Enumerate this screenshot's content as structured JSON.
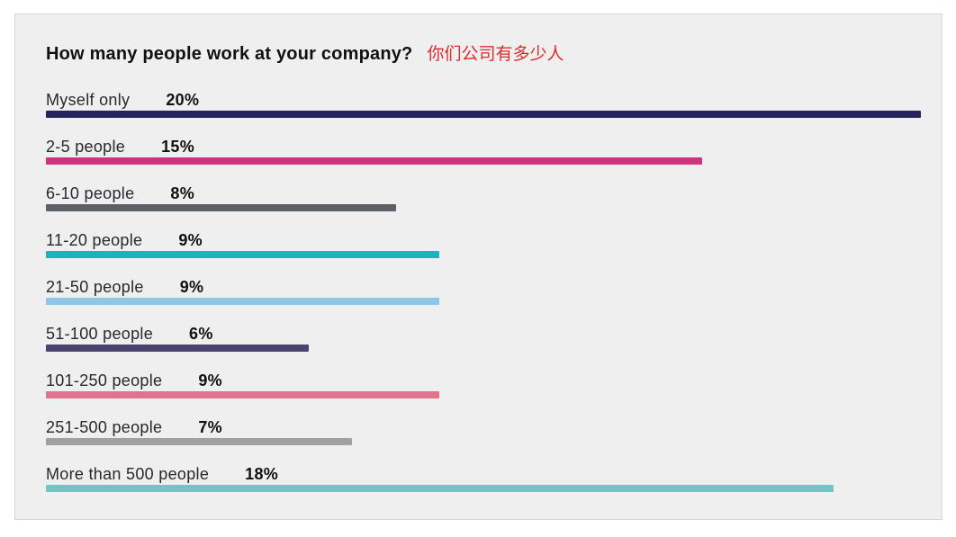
{
  "title": {
    "en": "How many people work at your company?",
    "zh": "你们公司有多少人",
    "zh_color": "#DD2C2C"
  },
  "colors": {
    "panel_bg": "#EFEFEF",
    "page_bg": "#FFFFFF",
    "panel_border": "#D6D6D6",
    "title_text": "#111114",
    "label_text": "#28282E"
  },
  "chart_data": {
    "type": "bar",
    "orientation": "horizontal",
    "title": "How many people work at your company?",
    "title_translation": "你们公司有多少人",
    "xlabel": "",
    "ylabel": "",
    "xlim": [
      0,
      20
    ],
    "grid": false,
    "legend": false,
    "categories": [
      "Myself only",
      "2-5 people",
      "6-10 people",
      "11-20 people",
      "21-50 people",
      "51-100 people",
      "101-250 people",
      "251-500 people",
      "More than 500 people"
    ],
    "values": [
      20,
      15,
      8,
      9,
      9,
      6,
      9,
      7,
      18
    ],
    "rows": [
      {
        "label": "Myself only",
        "value": 20,
        "display": "20%",
        "color": "#29235C"
      },
      {
        "label": "2-5 people",
        "value": 15,
        "display": "15%",
        "color": "#D1337F"
      },
      {
        "label": "6-10 people",
        "value": 8,
        "display": "8%",
        "color": "#5D6066"
      },
      {
        "label": "11-20 people",
        "value": 9,
        "display": "9%",
        "color": "#19B4BC"
      },
      {
        "label": "21-50 people",
        "value": 9,
        "display": "9%",
        "color": "#8BC8E8"
      },
      {
        "label": "51-100 people",
        "value": 6,
        "display": "6%",
        "color": "#4C4470"
      },
      {
        "label": "101-250 people",
        "value": 9,
        "display": "9%",
        "color": "#E0738F"
      },
      {
        "label": "251-500 people",
        "value": 7,
        "display": "7%",
        "color": "#9EA0A3"
      },
      {
        "label": "More than 500 people",
        "value": 18,
        "display": "18%",
        "color": "#74C3C5"
      }
    ]
  }
}
